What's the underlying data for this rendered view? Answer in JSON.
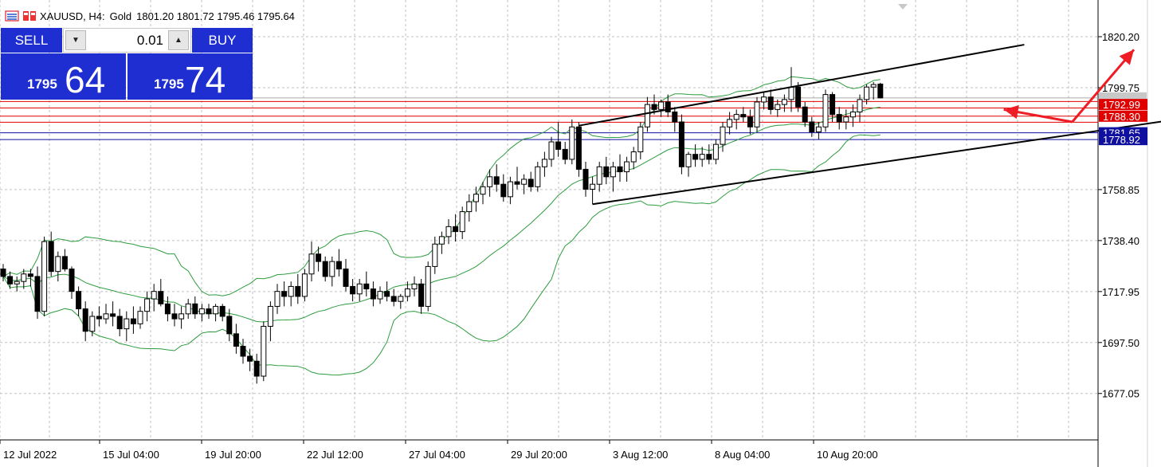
{
  "header": {
    "symbol": "XAUUSD, H4:",
    "name": "Gold",
    "ohlc": "1801.20 1801.72 1795.46 1795.64"
  },
  "trade_panel": {
    "sell_label": "SELL",
    "buy_label": "BUY",
    "lot_value": "0.01",
    "sell_price_small": "1795",
    "sell_price_large": "64",
    "buy_price_small": "1795",
    "buy_price_large": "74"
  },
  "colors": {
    "panel_blue": "#1f2ed0",
    "band": "#2e9c3f",
    "red_line": "#e00000",
    "blue_line": "#1010a0",
    "arrow": "#ee1c24",
    "grid": "#c0c0c0"
  },
  "chart_data": {
    "type": "candlestick",
    "symbol": "XAUUSD",
    "timeframe": "H4",
    "ylim": [
      1660,
      1830
    ],
    "y_ticks": [
      "1820.20",
      "1799.75",
      "1758.85",
      "1738.40",
      "1717.95",
      "1697.50",
      "1677.05"
    ],
    "x_ticks": [
      "12 Jul 2022",
      "15 Jul 04:00",
      "19 Jul 20:00",
      "22 Jul 12:00",
      "27 Jul 04:00",
      "29 Jul 20:00",
      "3 Aug 12:00",
      "8 Aug 04:00",
      "10 Aug 20:00"
    ],
    "price_labels": [
      {
        "text": "1792.99",
        "value": 1792.99,
        "color": "red"
      },
      {
        "text": "1788.30",
        "value": 1788.3,
        "color": "red"
      },
      {
        "text": "1781.65",
        "value": 1781.65,
        "color": "blue"
      },
      {
        "text": "1778.92",
        "value": 1778.92,
        "color": "blue"
      }
    ],
    "horizontal_lines": [
      {
        "value": 1795.64,
        "color": "gray"
      },
      {
        "value": 1794.2,
        "color": "red"
      },
      {
        "value": 1791.6,
        "color": "red"
      },
      {
        "value": 1788.3,
        "color": "red"
      },
      {
        "value": 1785.9,
        "color": "red"
      },
      {
        "value": 1781.65,
        "color": "blue"
      },
      {
        "value": 1778.92,
        "color": "blue"
      }
    ],
    "candles": [
      [
        1727,
        1729,
        1722,
        1724
      ],
      [
        1724,
        1726,
        1719,
        1721
      ],
      [
        1721,
        1724,
        1718,
        1722
      ],
      [
        1722,
        1727,
        1719,
        1725
      ],
      [
        1725,
        1727,
        1720,
        1724
      ],
      [
        1724,
        1728,
        1707,
        1710
      ],
      [
        1710,
        1740,
        1708,
        1738
      ],
      [
        1738,
        1742,
        1724,
        1726
      ],
      [
        1726,
        1734,
        1722,
        1732
      ],
      [
        1732,
        1735,
        1726,
        1727
      ],
      [
        1727,
        1728,
        1715,
        1718
      ],
      [
        1718,
        1720,
        1708,
        1711
      ],
      [
        1711,
        1714,
        1698,
        1702
      ],
      [
        1702,
        1710,
        1700,
        1708
      ],
      [
        1708,
        1712,
        1704,
        1707
      ],
      [
        1707,
        1713,
        1705,
        1709
      ],
      [
        1709,
        1714,
        1704,
        1708
      ],
      [
        1708,
        1711,
        1700,
        1703
      ],
      [
        1703,
        1710,
        1698,
        1707
      ],
      [
        1707,
        1712,
        1701,
        1705
      ],
      [
        1705,
        1712,
        1703,
        1710
      ],
      [
        1710,
        1718,
        1706,
        1715
      ],
      [
        1715,
        1721,
        1710,
        1718
      ],
      [
        1718,
        1723,
        1712,
        1713
      ],
      [
        1713,
        1716,
        1706,
        1709
      ],
      [
        1709,
        1713,
        1704,
        1707
      ],
      [
        1707,
        1712,
        1703,
        1709
      ],
      [
        1709,
        1715,
        1707,
        1713
      ],
      [
        1713,
        1716,
        1707,
        1709
      ],
      [
        1709,
        1713,
        1706,
        1711
      ],
      [
        1711,
        1713,
        1707,
        1709
      ],
      [
        1709,
        1713,
        1706,
        1712
      ],
      [
        1712,
        1713,
        1706,
        1708
      ],
      [
        1708,
        1711,
        1698,
        1701
      ],
      [
        1701,
        1705,
        1693,
        1696
      ],
      [
        1696,
        1699,
        1689,
        1692
      ],
      [
        1692,
        1695,
        1686,
        1690
      ],
      [
        1690,
        1693,
        1681,
        1684
      ],
      [
        1684,
        1706,
        1682,
        1704
      ],
      [
        1704,
        1714,
        1698,
        1712
      ],
      [
        1712,
        1721,
        1709,
        1718
      ],
      [
        1718,
        1722,
        1712,
        1716
      ],
      [
        1716,
        1722,
        1712,
        1720
      ],
      [
        1720,
        1725,
        1713,
        1716
      ],
      [
        1716,
        1727,
        1714,
        1725
      ],
      [
        1725,
        1738,
        1722,
        1733
      ],
      [
        1733,
        1736,
        1726,
        1730
      ],
      [
        1730,
        1732,
        1722,
        1724
      ],
      [
        1724,
        1732,
        1720,
        1730
      ],
      [
        1730,
        1735,
        1724,
        1727
      ],
      [
        1727,
        1731,
        1718,
        1720
      ],
      [
        1720,
        1723,
        1714,
        1717
      ],
      [
        1717,
        1723,
        1714,
        1721
      ],
      [
        1721,
        1726,
        1716,
        1719
      ],
      [
        1719,
        1722,
        1712,
        1715
      ],
      [
        1715,
        1720,
        1713,
        1718
      ],
      [
        1718,
        1722,
        1714,
        1716
      ],
      [
        1716,
        1719,
        1712,
        1714
      ],
      [
        1714,
        1717,
        1711,
        1716
      ],
      [
        1716,
        1722,
        1714,
        1719
      ],
      [
        1719,
        1724,
        1716,
        1721
      ],
      [
        1721,
        1723,
        1709,
        1712
      ],
      [
        1712,
        1730,
        1710,
        1728
      ],
      [
        1728,
        1740,
        1725,
        1737
      ],
      [
        1737,
        1742,
        1733,
        1740
      ],
      [
        1740,
        1747,
        1737,
        1744
      ],
      [
        1744,
        1749,
        1738,
        1742
      ],
      [
        1742,
        1752,
        1739,
        1750
      ],
      [
        1750,
        1757,
        1746,
        1754
      ],
      [
        1754,
        1760,
        1750,
        1757
      ],
      [
        1757,
        1762,
        1753,
        1760
      ],
      [
        1760,
        1767,
        1756,
        1764
      ],
      [
        1764,
        1769,
        1758,
        1761
      ],
      [
        1761,
        1765,
        1754,
        1756
      ],
      [
        1756,
        1764,
        1753,
        1762
      ],
      [
        1762,
        1768,
        1759,
        1761
      ],
      [
        1761,
        1765,
        1757,
        1763
      ],
      [
        1763,
        1766,
        1758,
        1760
      ],
      [
        1760,
        1770,
        1758,
        1768
      ],
      [
        1768,
        1774,
        1764,
        1771
      ],
      [
        1771,
        1780,
        1768,
        1778
      ],
      [
        1778,
        1786,
        1772,
        1775
      ],
      [
        1775,
        1778,
        1769,
        1771
      ],
      [
        1771,
        1787,
        1769,
        1784
      ],
      [
        1784,
        1786,
        1764,
        1767
      ],
      [
        1767,
        1770,
        1756,
        1759
      ],
      [
        1759,
        1764,
        1753,
        1761
      ],
      [
        1761,
        1770,
        1758,
        1768
      ],
      [
        1768,
        1772,
        1761,
        1764
      ],
      [
        1764,
        1770,
        1758,
        1768
      ],
      [
        1768,
        1773,
        1762,
        1766
      ],
      [
        1766,
        1772,
        1762,
        1770
      ],
      [
        1770,
        1776,
        1767,
        1774
      ],
      [
        1774,
        1786,
        1771,
        1784
      ],
      [
        1784,
        1796,
        1782,
        1793
      ],
      [
        1793,
        1797,
        1789,
        1791
      ],
      [
        1791,
        1795,
        1788,
        1794
      ],
      [
        1794,
        1797,
        1788,
        1790
      ],
      [
        1790,
        1792,
        1782,
        1786
      ],
      [
        1786,
        1789,
        1765,
        1768
      ],
      [
        1768,
        1774,
        1764,
        1773
      ],
      [
        1773,
        1777,
        1768,
        1771
      ],
      [
        1771,
        1776,
        1768,
        1773
      ],
      [
        1773,
        1777,
        1769,
        1771
      ],
      [
        1771,
        1779,
        1769,
        1777
      ],
      [
        1777,
        1786,
        1774,
        1784
      ],
      [
        1784,
        1790,
        1781,
        1787
      ],
      [
        1787,
        1791,
        1783,
        1789
      ],
      [
        1789,
        1792,
        1786,
        1788
      ],
      [
        1788,
        1791,
        1781,
        1784
      ],
      [
        1784,
        1796,
        1782,
        1794
      ],
      [
        1794,
        1798,
        1791,
        1796
      ],
      [
        1796,
        1799,
        1789,
        1791
      ],
      [
        1791,
        1795,
        1788,
        1793
      ],
      [
        1793,
        1797,
        1790,
        1795
      ],
      [
        1795,
        1808,
        1790,
        1800
      ],
      [
        1800,
        1802,
        1790,
        1792
      ],
      [
        1792,
        1794,
        1784,
        1786
      ],
      [
        1786,
        1788,
        1780,
        1782
      ],
      [
        1782,
        1786,
        1779,
        1784
      ],
      [
        1784,
        1799,
        1782,
        1797
      ],
      [
        1797,
        1798,
        1786,
        1789
      ],
      [
        1789,
        1792,
        1783,
        1786
      ],
      [
        1786,
        1791,
        1783,
        1788
      ],
      [
        1788,
        1793,
        1784,
        1790
      ],
      [
        1790,
        1797,
        1786,
        1795
      ],
      [
        1795,
        1801,
        1793,
        1800
      ],
      [
        1800,
        1802,
        1795,
        1801
      ],
      [
        1801.2,
        1801.72,
        1795.46,
        1795.64
      ]
    ],
    "bollinger_bands": {
      "period": 20,
      "deviations": 2
    },
    "trend_lines": [
      {
        "from": [
          84,
          1784.5
        ],
        "to": [
          149,
          1817
        ],
        "color": "black"
      },
      {
        "from": [
          86,
          1753
        ],
        "to": [
          205,
          1800.5
        ],
        "color": "black"
      }
    ],
    "arrows": [
      {
        "from": [
          156,
          1786
        ],
        "to": [
          165,
          1815
        ],
        "color": "red",
        "double_headed": true
      },
      {
        "from": [
          156,
          1786
        ],
        "to": [
          146,
          1791
        ],
        "color": "red"
      }
    ],
    "grid": true
  }
}
